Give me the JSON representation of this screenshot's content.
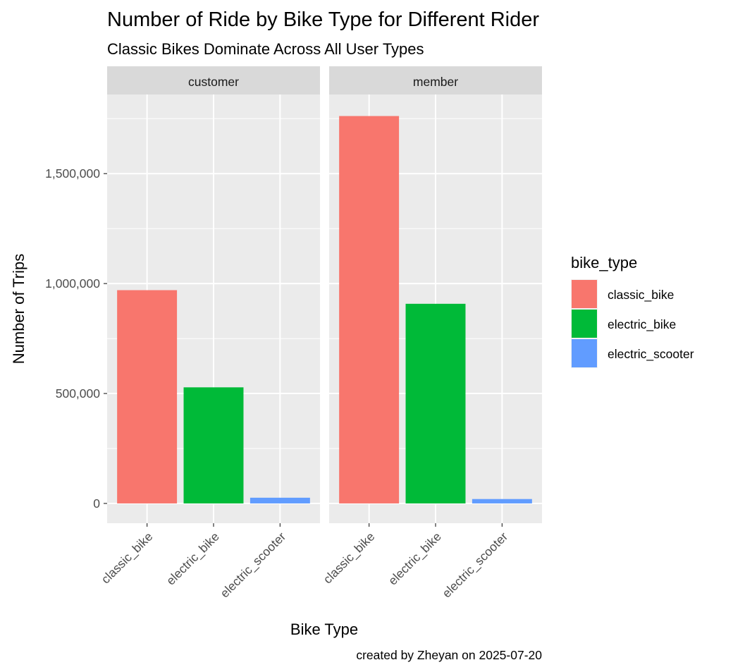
{
  "chart_data": {
    "type": "bar",
    "title": "Number of Ride by Bike Type for Different Rider",
    "subtitle": "Classic Bikes Dominate Across All User Types",
    "xlabel": "Bike Type",
    "ylabel": "Number of Trips",
    "caption": "created by Zheyan on 2025-07-20",
    "facets": [
      "customer",
      "member"
    ],
    "categories": [
      "classic_bike",
      "electric_bike",
      "electric_scooter"
    ],
    "series": [
      {
        "facet": "customer",
        "values": [
          970000,
          528000,
          26000
        ]
      },
      {
        "facet": "member",
        "values": [
          1762000,
          908000,
          20000
        ]
      }
    ],
    "ylim": [
      -90000,
      1860000
    ],
    "y_ticks": [
      0,
      500000,
      1000000,
      1500000
    ],
    "y_tick_labels": [
      "0",
      "500,000",
      "1,000,000",
      "1,500,000"
    ],
    "legend": {
      "title": "bike_type",
      "position": "right",
      "entries": [
        "classic_bike",
        "electric_bike",
        "electric_scooter"
      ]
    },
    "colors": {
      "classic_bike": "#F8766D",
      "electric_bike": "#00BA38",
      "electric_scooter": "#619CFF",
      "panel_background": "#EBEBEB",
      "strip_background": "#D9D9D9",
      "grid": "#FFFFFF"
    },
    "grid": true
  }
}
